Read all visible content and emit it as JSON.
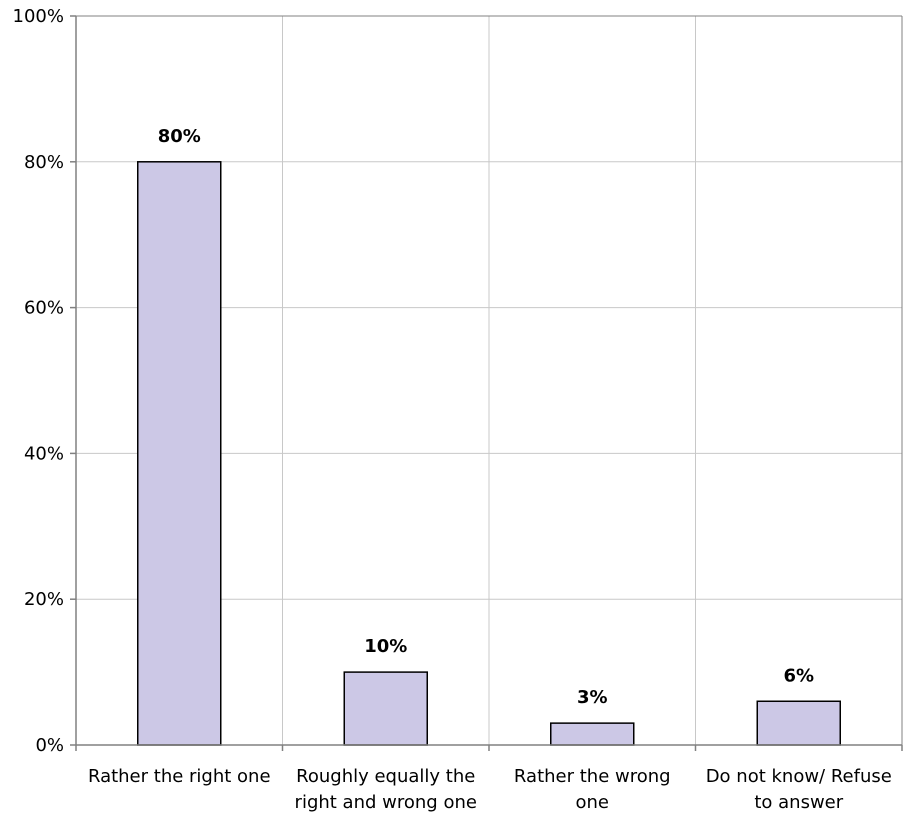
{
  "chart_data": {
    "type": "bar",
    "categories": [
      [
        "Rather the right one"
      ],
      [
        "Roughly equally the",
        "right and wrong one"
      ],
      [
        "Rather the wrong",
        "one"
      ],
      [
        "Do not know/ Refuse",
        "to answer"
      ]
    ],
    "values": [
      80,
      10,
      3,
      6
    ],
    "data_labels": [
      "80%",
      "10%",
      "3%",
      "6%"
    ],
    "ylim": [
      0,
      100
    ],
    "yticks": [
      0,
      20,
      40,
      60,
      80,
      100
    ],
    "ytick_labels": [
      "0%",
      "20%",
      "40%",
      "60%",
      "80%",
      "100%"
    ],
    "grid": true,
    "legend": "none",
    "colors": {
      "bar_fill": "#ccc8e6",
      "bar_stroke": "#000000",
      "grid": "#c8c8c8",
      "axis": "#808080"
    }
  }
}
